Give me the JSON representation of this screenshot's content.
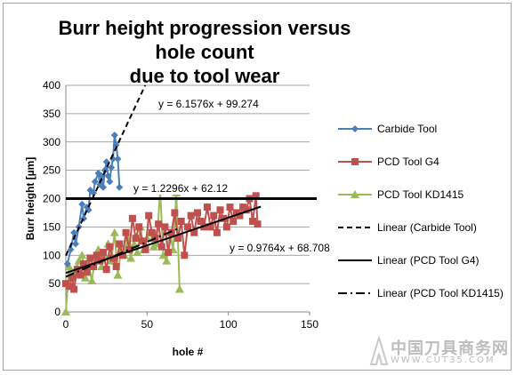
{
  "chart_data": {
    "type": "line",
    "title": "Burr height progression versus hole count due to tool wear",
    "title_lines": [
      "Burr height progression versus hole count",
      "due to tool wear"
    ],
    "xlabel": "hole #",
    "ylabel": "Burr height [µm]",
    "xlim": [
      0,
      150
    ],
    "ylim": [
      0,
      400
    ],
    "x_ticks": [
      0,
      50,
      100,
      150
    ],
    "y_ticks": [
      0,
      50,
      100,
      150,
      200,
      250,
      300,
      350,
      400
    ],
    "grid": "horizontal",
    "legend_position": "right",
    "series": [
      {
        "name": "Carbide Tool",
        "color": "#4a7ebb",
        "marker": "diamond",
        "x": [
          1,
          3,
          5,
          6,
          8,
          10,
          11,
          13,
          14,
          15,
          17,
          18,
          20,
          21,
          22,
          23,
          24,
          25,
          26,
          27,
          28,
          29,
          30,
          31,
          32,
          33
        ],
        "y": [
          85,
          110,
          140,
          120,
          150,
          190,
          165,
          185,
          180,
          215,
          210,
          230,
          245,
          225,
          240,
          220,
          250,
          265,
          240,
          230,
          255,
          270,
          312,
          295,
          270,
          220
        ]
      },
      {
        "name": "PCD Tool G4",
        "color": "#c0504d",
        "marker": "square",
        "x": [
          0,
          2,
          4,
          5,
          7,
          9,
          11,
          13,
          15,
          17,
          19,
          21,
          23,
          25,
          27,
          29,
          31,
          33,
          35,
          37,
          39,
          41,
          43,
          45,
          47,
          49,
          51,
          53,
          55,
          57,
          59,
          61,
          63,
          65,
          67,
          69,
          71,
          73,
          75,
          77,
          79,
          81,
          83,
          85,
          87,
          89,
          91,
          93,
          95,
          97,
          99,
          101,
          103,
          105,
          107,
          109,
          111,
          113,
          115,
          117,
          118
        ],
        "y": [
          50,
          45,
          60,
          40,
          75,
          65,
          85,
          70,
          95,
          80,
          100,
          90,
          105,
          75,
          115,
          95,
          80,
          120,
          100,
          140,
          110,
          165,
          130,
          150,
          125,
          110,
          170,
          140,
          130,
          155,
          115,
          150,
          105,
          140,
          175,
          130,
          160,
          100,
          150,
          170,
          140,
          175,
          160,
          150,
          185,
          150,
          170,
          140,
          180,
          165,
          150,
          185,
          160,
          175,
          170,
          185,
          180,
          200,
          160,
          205,
          155
        ]
      },
      {
        "name": "PCD Tool KD1415",
        "color": "#9bbb59",
        "marker": "triangle",
        "x": [
          0,
          2,
          4,
          6,
          8,
          10,
          12,
          14,
          16,
          18,
          20,
          22,
          24,
          26,
          28,
          30,
          32,
          34,
          36,
          38,
          40,
          42,
          44,
          46,
          48,
          50,
          52,
          54,
          56,
          58,
          60,
          62,
          64,
          66,
          68,
          70
        ],
        "y": [
          0,
          80,
          70,
          75,
          90,
          100,
          60,
          85,
          55,
          95,
          110,
          80,
          100,
          120,
          90,
          140,
          65,
          110,
          100,
          130,
          95,
          120,
          105,
          150,
          110,
          130,
          140,
          115,
          120,
          215,
          100,
          90,
          140,
          110,
          210,
          40
        ]
      }
    ],
    "trendlines": [
      {
        "name": "Linear (Carbide Tool)",
        "style": "dashed",
        "slope": 6.1576,
        "intercept": 99.274,
        "x_range": [
          0,
          50
        ],
        "equation": "y = 6.1576x + 99.274"
      },
      {
        "name": "Linear (PCD Tool G4)",
        "style": "solid",
        "slope": 0.9764,
        "intercept": 68.708,
        "x_range": [
          0,
          120
        ],
        "equation": "y = 0.9764x + 68.708"
      },
      {
        "name": "Linear (PCD Tool KD1415)",
        "style": "dash-dot",
        "slope": 1.2296,
        "intercept": 62.12,
        "x_range": [
          0,
          70
        ],
        "equation": "y = 1.2296x + 62.12"
      }
    ],
    "reference_line": {
      "y": 200,
      "color": "#000000"
    }
  },
  "watermark": {
    "text_cn": "中国刀具商务网",
    "url": "WWW.CUT35.COM"
  }
}
